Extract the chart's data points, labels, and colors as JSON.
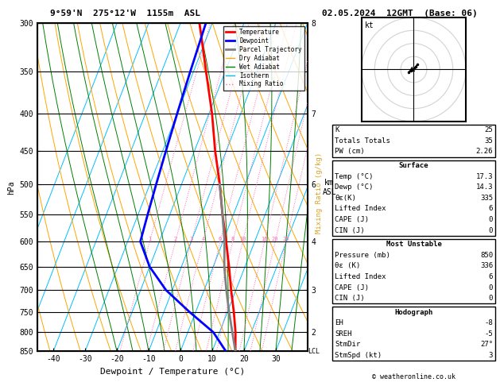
{
  "title_left": "9°59'N  275°12'W  1155m  ASL",
  "title_right": "02.05.2024  12GMT  (Base: 06)",
  "xlabel": "Dewpoint / Temperature (°C)",
  "ylabel_left": "hPa",
  "km_labels": {
    "300": "8",
    "400": "7",
    "500": "6",
    "600": "4",
    "700": "3",
    "800": "2"
  },
  "lcl_pressure": 850,
  "xlim": [
    -45,
    40
  ],
  "temp_profile": {
    "pressure": [
      850,
      800,
      750,
      700,
      650,
      600,
      550,
      500,
      450,
      400,
      350,
      300
    ],
    "temp": [
      17.3,
      15.0,
      12.0,
      8.5,
      5.0,
      1.0,
      -3.5,
      -8.0,
      -13.5,
      -19.0,
      -26.0,
      -34.0
    ]
  },
  "dewp_profile": {
    "pressure": [
      850,
      800,
      750,
      700,
      650,
      600,
      550,
      500,
      450,
      400,
      350,
      300
    ],
    "temp": [
      14.3,
      8.0,
      -2.0,
      -12.0,
      -20.0,
      -26.0,
      -27.0,
      -28.0,
      -29.0,
      -30.0,
      -31.0,
      -32.0
    ]
  },
  "parcel_profile": {
    "pressure": [
      850,
      800,
      750,
      700,
      650,
      600,
      550,
      500
    ],
    "temp": [
      17.3,
      14.0,
      10.5,
      7.0,
      3.5,
      0.5,
      -3.5,
      -8.0
    ]
  },
  "mixing_ratio_lines": [
    1,
    2,
    3,
    4,
    6,
    8,
    10,
    16,
    20,
    25
  ],
  "mixing_ratio_color": "#ff69b4",
  "dry_adiabat_color": "#ffa500",
  "wet_adiabat_color": "#008000",
  "isotherm_color": "#00bfff",
  "temp_color": "#ff0000",
  "dewp_color": "#0000ff",
  "parcel_color": "#808080",
  "legend_entries": [
    {
      "label": "Temperature",
      "color": "#ff0000",
      "lw": 2,
      "ls": "-"
    },
    {
      "label": "Dewpoint",
      "color": "#0000ff",
      "lw": 2,
      "ls": "-"
    },
    {
      "label": "Parcel Trajectory",
      "color": "#808080",
      "lw": 2,
      "ls": "-"
    },
    {
      "label": "Dry Adiabat",
      "color": "#ffa500",
      "lw": 1,
      "ls": "-"
    },
    {
      "label": "Wet Adiabat",
      "color": "#008000",
      "lw": 1,
      "ls": "-"
    },
    {
      "label": "Isotherm",
      "color": "#00bfff",
      "lw": 1,
      "ls": "-"
    },
    {
      "label": "Mixing Ratio",
      "color": "#ff69b4",
      "lw": 1,
      "ls": ":"
    }
  ],
  "hodo_winds": {
    "u": [
      1.5,
      0.8,
      0.2,
      -0.5,
      -1.2,
      -2.0
    ],
    "v": [
      2.0,
      1.2,
      0.5,
      0.0,
      -0.5,
      -1.0
    ]
  },
  "info_lines_top": [
    [
      "K",
      "25"
    ],
    [
      "Totals Totals",
      "35"
    ],
    [
      "PW (cm)",
      "2.26"
    ]
  ],
  "info_surface_title": "Surface",
  "info_surface": [
    [
      "Temp (°C)",
      "17.3"
    ],
    [
      "Dewp (°C)",
      "14.3"
    ],
    [
      "θε(K)",
      "335"
    ],
    [
      "Lifted Index",
      "6"
    ],
    [
      "CAPE (J)",
      "0"
    ],
    [
      "CIN (J)",
      "0"
    ]
  ],
  "info_mu_title": "Most Unstable",
  "info_mu": [
    [
      "Pressure (mb)",
      "850"
    ],
    [
      "θε (K)",
      "336"
    ],
    [
      "Lifted Index",
      "6"
    ],
    [
      "CAPE (J)",
      "0"
    ],
    [
      "CIN (J)",
      "0"
    ]
  ],
  "info_hodo_title": "Hodograph",
  "info_hodo": [
    [
      "EH",
      "-8"
    ],
    [
      "SREH",
      "-5"
    ],
    [
      "StmDir",
      "27°"
    ],
    [
      "StmSpd (kt)",
      "3"
    ]
  ],
  "copyright": "© weatheronline.co.uk"
}
